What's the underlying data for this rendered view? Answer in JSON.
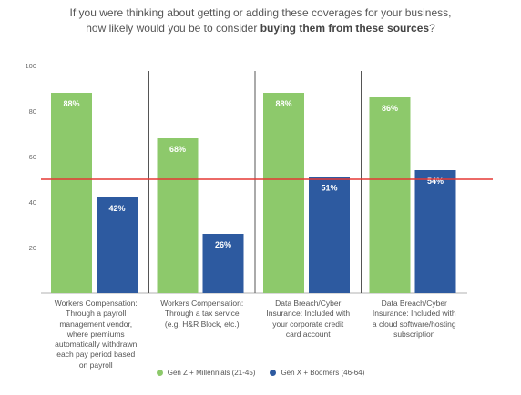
{
  "title": {
    "line1": "If you were thinking about getting or adding these coverages for your business,",
    "line2_prefix": "how likely would you be to consider ",
    "line2_bold": "buying them from these sources",
    "line2_suffix": "?"
  },
  "chart_data": {
    "type": "bar",
    "title": "If you were thinking about getting or adding these coverages for your business, how likely would you be to consider buying them from these sources?",
    "categories": [
      [
        "Workers Compensation:",
        "Through a payroll",
        "management vendor,",
        "where premiums",
        "automatically withdrawn",
        "each pay period based",
        "on payroll"
      ],
      [
        "Workers Compensation:",
        "Through a tax service",
        "(e.g. H&R Block, etc.)"
      ],
      [
        "Data Breach/Cyber",
        "Insurance: Included with",
        "your corporate credit",
        "card account"
      ],
      [
        "Data Breach/Cyber",
        "Insurance: Included with",
        "a cloud software/hosting",
        "subscription"
      ]
    ],
    "series": [
      {
        "name": "Gen Z + Millennials (21-45)",
        "color": "#8dc96b",
        "values": [
          88,
          68,
          88,
          86
        ],
        "labels": [
          "88%",
          "68%",
          "88%",
          "86%"
        ]
      },
      {
        "name": "Gen X + Boomers (46-64)",
        "color": "#2d5aa0",
        "values": [
          42,
          26,
          51,
          54
        ],
        "labels": [
          "42%",
          "26%",
          "51%",
          "54%"
        ]
      }
    ],
    "ylim": [
      0,
      100
    ],
    "yticks": [
      0,
      20,
      40,
      60,
      80,
      100
    ],
    "ytick_labels": [
      "",
      "20",
      "40",
      "60",
      "80",
      "100"
    ],
    "reference_line": {
      "value": 50,
      "color": "#e53935"
    },
    "grid": false,
    "legend_position": "bottom-center",
    "divider_color": "#555555"
  }
}
